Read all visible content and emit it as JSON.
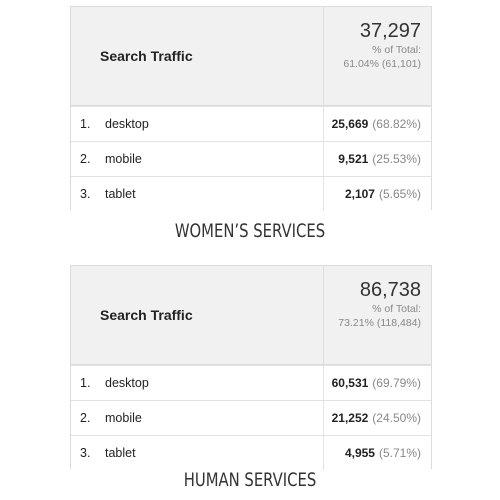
{
  "sections": [
    {
      "header_label": "Search Traffic",
      "total_value": "37,297",
      "total_line1": "% of Total:",
      "total_line2": "61.04% (61,101)",
      "rows": [
        {
          "num": "1.",
          "name": "desktop",
          "value": "25,669",
          "pct": "(68.82%)"
        },
        {
          "num": "2.",
          "name": "mobile",
          "value": "9,521",
          "pct": "(25.53%)"
        },
        {
          "num": "3.",
          "name": "tablet",
          "value": "2,107",
          "pct": "(5.65%)"
        }
      ],
      "caption": "WOMEN’S SERVICES"
    },
    {
      "header_label": "Search Traffic",
      "total_value": "86,738",
      "total_line1": "% of Total:",
      "total_line2": "73.21% (118,484)",
      "rows": [
        {
          "num": "1.",
          "name": "desktop",
          "value": "60,531",
          "pct": "(69.79%)"
        },
        {
          "num": "2.",
          "name": "mobile",
          "value": "21,252",
          "pct": "(24.50%)"
        },
        {
          "num": "3.",
          "name": "tablet",
          "value": "4,955",
          "pct": "(5.71%)"
        }
      ],
      "caption": "HUMAN SERVICES"
    }
  ]
}
